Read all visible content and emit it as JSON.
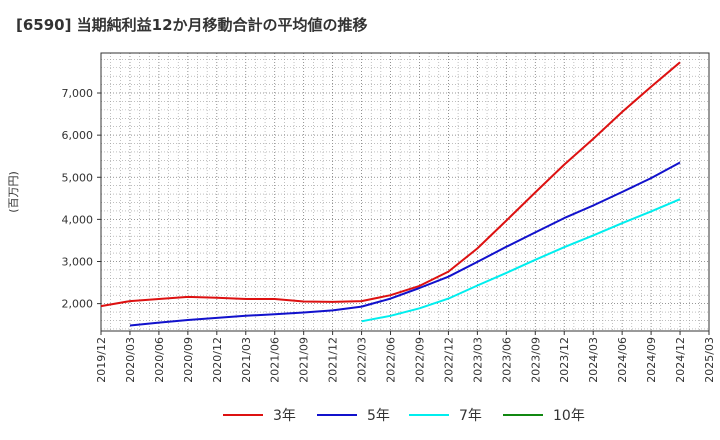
{
  "title": "[6590]  当期純利益12か月移動合計の平均値の推移",
  "chart_data": {
    "type": "line",
    "ylabel": "(百万円)",
    "xlabel": "",
    "ylim": [
      1350,
      7950
    ],
    "yticks": [
      2000,
      3000,
      4000,
      5000,
      6000,
      7000
    ],
    "ytick_labels": [
      "2,000",
      "3,000",
      "4,000",
      "5,000",
      "6,000",
      "7,000"
    ],
    "xticks": [
      "2019/12",
      "2020/03",
      "2020/06",
      "2020/09",
      "2020/12",
      "2021/03",
      "2021/06",
      "2021/09",
      "2021/12",
      "2022/03",
      "2022/06",
      "2022/09",
      "2022/12",
      "2023/03",
      "2023/06",
      "2023/09",
      "2023/12",
      "2024/03",
      "2024/06",
      "2024/09",
      "2024/12",
      "2025/03"
    ],
    "grid": true,
    "legend_position": "bottom",
    "series": [
      {
        "name": "3年",
        "color": "#dd1111",
        "x": [
          "2019/12",
          "2020/03",
          "2020/06",
          "2020/09",
          "2020/12",
          "2021/03",
          "2021/06",
          "2021/09",
          "2021/12",
          "2022/03",
          "2022/06",
          "2022/09",
          "2022/12",
          "2023/03",
          "2023/06",
          "2023/09",
          "2023/12",
          "2024/03",
          "2024/06",
          "2024/09",
          "2024/12"
        ],
        "values": [
          1940,
          2060,
          2110,
          2160,
          2140,
          2110,
          2110,
          2050,
          2040,
          2060,
          2200,
          2420,
          2760,
          3310,
          3970,
          4640,
          5300,
          5910,
          6550,
          7150,
          7730
        ]
      },
      {
        "name": "5年",
        "color": "#1111cc",
        "x": [
          "2020/03",
          "2020/06",
          "2020/09",
          "2020/12",
          "2021/03",
          "2021/06",
          "2021/09",
          "2021/12",
          "2022/03",
          "2022/06",
          "2022/09",
          "2022/12",
          "2023/03",
          "2023/06",
          "2023/09",
          "2023/12",
          "2024/03",
          "2024/06",
          "2024/09",
          "2024/12"
        ],
        "values": [
          1480,
          1550,
          1610,
          1660,
          1710,
          1750,
          1790,
          1840,
          1930,
          2120,
          2370,
          2640,
          2990,
          3350,
          3690,
          4030,
          4330,
          4650,
          4980,
          5350
        ]
      },
      {
        "name": "7年",
        "color": "#00eeee",
        "x": [
          "2022/03",
          "2022/06",
          "2022/09",
          "2022/12",
          "2023/03",
          "2023/06",
          "2023/09",
          "2023/12",
          "2024/03",
          "2024/06",
          "2024/09",
          "2024/12"
        ],
        "values": [
          1580,
          1710,
          1890,
          2120,
          2430,
          2730,
          3040,
          3340,
          3620,
          3910,
          4190,
          4480
        ]
      },
      {
        "name": "10年",
        "color": "#118811",
        "x": [],
        "values": []
      }
    ]
  }
}
